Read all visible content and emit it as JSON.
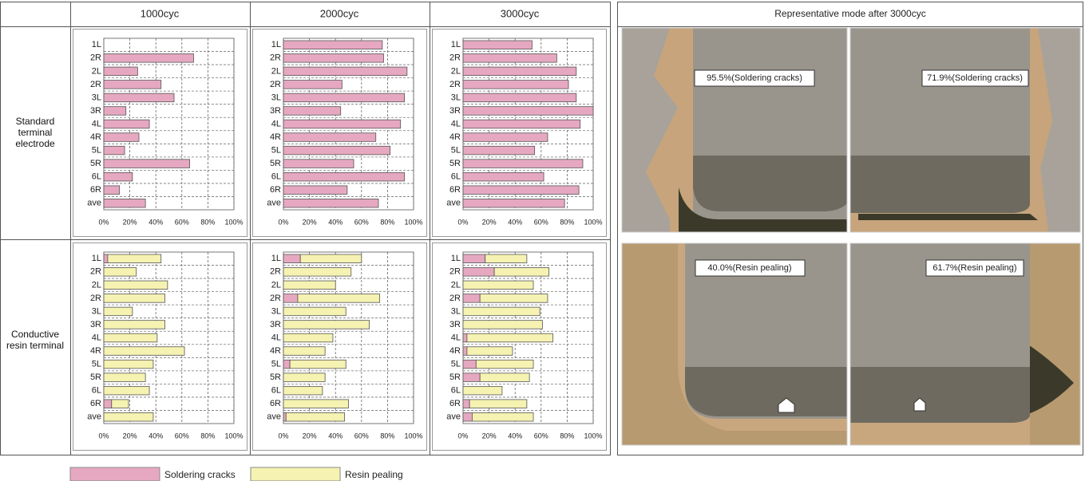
{
  "table": {
    "columns": [
      "1000cyc",
      "2000cyc",
      "3000cyc"
    ],
    "rows": [
      "Standard terminal electrode",
      "Conductive resin terminal"
    ]
  },
  "photos": {
    "title": "Representative mode after 3000cyc",
    "labels": [
      "95.5%(Soldering cracks)",
      "71.9%(Soldering cracks)",
      "40.0%(Resin pealing)",
      "61.7%(Resin pealing)"
    ]
  },
  "chart_data": [
    {
      "type": "bar",
      "orientation": "horizontal",
      "stacked": true,
      "grid": true,
      "categories": [
        "1L",
        "2R",
        "2L",
        "2R",
        "3L",
        "3R",
        "4L",
        "4R",
        "5L",
        "5R",
        "6L",
        "6R",
        "ave"
      ],
      "series": [
        {
          "name": "Soldering cracks",
          "color": "#e6a8c0",
          "values": [
            0,
            69,
            26,
            44,
            54,
            17,
            35,
            27,
            16,
            66,
            22,
            12,
            32
          ]
        }
      ],
      "xlim": [
        0,
        100
      ],
      "xticks": [
        {
          "value": 0,
          "label": "0%"
        },
        {
          "value": 20,
          "label": "20%"
        },
        {
          "value": 40,
          "label": "40%"
        },
        {
          "value": 60,
          "label": "60%"
        },
        {
          "value": 80,
          "label": "80%"
        },
        {
          "value": 100,
          "label": "100%"
        }
      ]
    },
    {
      "type": "bar",
      "orientation": "horizontal",
      "stacked": true,
      "grid": true,
      "categories": [
        "1L",
        "2R",
        "2L",
        "2R",
        "3L",
        "3R",
        "4L",
        "4R",
        "5L",
        "5R",
        "6L",
        "6R",
        "ave"
      ],
      "series": [
        {
          "name": "Soldering cracks",
          "color": "#e6a8c0",
          "values": [
            76,
            77,
            95,
            45,
            93,
            44,
            90,
            71,
            82,
            54,
            93,
            49,
            73
          ]
        }
      ],
      "xlim": [
        0,
        100
      ],
      "xticks": [
        {
          "value": 0,
          "label": "0%"
        },
        {
          "value": 20,
          "label": "20%"
        },
        {
          "value": 40,
          "label": "40%"
        },
        {
          "value": 60,
          "label": "60%"
        },
        {
          "value": 80,
          "label": "80%"
        },
        {
          "value": 100,
          "label": "100%"
        }
      ]
    },
    {
      "type": "bar",
      "orientation": "horizontal",
      "stacked": true,
      "grid": true,
      "categories": [
        "1L",
        "2R",
        "2L",
        "2R",
        "3L",
        "3R",
        "4L",
        "4R",
        "5L",
        "5R",
        "6L",
        "6R",
        "ave"
      ],
      "series": [
        {
          "name": "Soldering cracks",
          "color": "#e6a8c0",
          "values": [
            53,
            72,
            87,
            81,
            87,
            100,
            90,
            65,
            55,
            92,
            62,
            89,
            78
          ]
        }
      ],
      "xlim": [
        0,
        100
      ],
      "xticks": [
        {
          "value": 0,
          "label": "0%"
        },
        {
          "value": 20,
          "label": "20%"
        },
        {
          "value": 40,
          "label": "40%"
        },
        {
          "value": 60,
          "label": "60%"
        },
        {
          "value": 80,
          "label": "80%"
        },
        {
          "value": 100,
          "label": "100%"
        }
      ]
    },
    {
      "type": "bar",
      "orientation": "horizontal",
      "stacked": true,
      "grid": true,
      "categories": [
        "1L",
        "2R",
        "2L",
        "2R",
        "3L",
        "3R",
        "4L",
        "4R",
        "5L",
        "5R",
        "6L",
        "6R",
        "ave"
      ],
      "series": [
        {
          "name": "Soldering cracks",
          "color": "#e6a8c0",
          "values": [
            3,
            0,
            0,
            0,
            0,
            0,
            0,
            0,
            0,
            0,
            0,
            6,
            0
          ]
        },
        {
          "name": "Resin pealing",
          "color": "#f5f2b2",
          "values": [
            41,
            25,
            49,
            47,
            22,
            47,
            41,
            62,
            38,
            32,
            35,
            13,
            38
          ]
        }
      ],
      "xlim": [
        0,
        100
      ],
      "xticks": [
        {
          "value": 0,
          "label": "0%"
        },
        {
          "value": 20,
          "label": "20%"
        },
        {
          "value": 40,
          "label": "40%"
        },
        {
          "value": 60,
          "label": "60%"
        },
        {
          "value": 80,
          "label": "80%"
        },
        {
          "value": 100,
          "label": "100%"
        }
      ]
    },
    {
      "type": "bar",
      "orientation": "horizontal",
      "stacked": true,
      "grid": true,
      "categories": [
        "1L",
        "2R",
        "2L",
        "2R",
        "3L",
        "3R",
        "4L",
        "4R",
        "5L",
        "5R",
        "6L",
        "6R",
        "ave"
      ],
      "series": [
        {
          "name": "Soldering cracks",
          "color": "#e6a8c0",
          "values": [
            13,
            0,
            0,
            11,
            0,
            0,
            0,
            0,
            5,
            0,
            0,
            0,
            2
          ]
        },
        {
          "name": "Resin pealing",
          "color": "#f5f2b2",
          "values": [
            47,
            52,
            40,
            63,
            48,
            66,
            38,
            32,
            43,
            32,
            30,
            50,
            45
          ]
        }
      ],
      "xlim": [
        0,
        100
      ],
      "xticks": [
        {
          "value": 0,
          "label": "0%"
        },
        {
          "value": 20,
          "label": "20%"
        },
        {
          "value": 40,
          "label": "40%"
        },
        {
          "value": 60,
          "label": "60%"
        },
        {
          "value": 80,
          "label": "80%"
        },
        {
          "value": 100,
          "label": "100%"
        }
      ]
    },
    {
      "type": "bar",
      "orientation": "horizontal",
      "stacked": true,
      "grid": true,
      "categories": [
        "1L",
        "2R",
        "2L",
        "2R",
        "3L",
        "3R",
        "4L",
        "4R",
        "5L",
        "5R",
        "6L",
        "6R",
        "ave"
      ],
      "series": [
        {
          "name": "Soldering cracks",
          "color": "#e6a8c0",
          "values": [
            17,
            24,
            0,
            13,
            0,
            0,
            3,
            3,
            10,
            13,
            0,
            5,
            7
          ]
        },
        {
          "name": "Resin pealing",
          "color": "#f5f2b2",
          "values": [
            32,
            42,
            54,
            52,
            59,
            61,
            66,
            35,
            44,
            38,
            30,
            44,
            47
          ]
        }
      ],
      "xlim": [
        0,
        100
      ],
      "xticks": [
        {
          "value": 0,
          "label": "0%"
        },
        {
          "value": 20,
          "label": "20%"
        },
        {
          "value": 40,
          "label": "40%"
        },
        {
          "value": 60,
          "label": "60%"
        },
        {
          "value": 80,
          "label": "80%"
        },
        {
          "value": 100,
          "label": "100%"
        }
      ]
    }
  ]
}
